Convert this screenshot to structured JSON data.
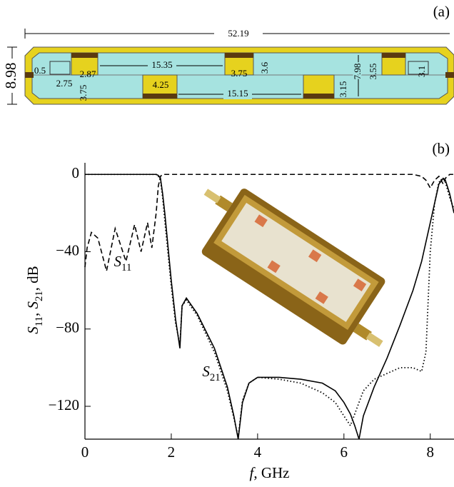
{
  "diagram": {
    "label": "(a)",
    "length": "52.19",
    "height": "8.98",
    "dimensions": [
      "0.5",
      "2.75",
      "2.87",
      "3.75",
      "15.35",
      "3.75",
      "3.6",
      "4.25",
      "15.15",
      "3.15",
      "7.98",
      "3.55",
      "3.1"
    ]
  },
  "chart_data": {
    "type": "line",
    "panel_label": "(b)",
    "x_label": "f, GHz",
    "y_label": "S11, S21, dB",
    "annotations": [
      "S11",
      "S21"
    ],
    "x": [
      0,
      0.05,
      0.15,
      0.3,
      0.5,
      0.7,
      0.95,
      1.15,
      1.3,
      1.45,
      1.55,
      1.65,
      1.7,
      1.75,
      1.8,
      1.85,
      2.0,
      2.1,
      2.2,
      2.25,
      2.35,
      2.6,
      3.0,
      3.3,
      3.45,
      3.55,
      3.65,
      3.8,
      4.0,
      4.5,
      5.0,
      5.5,
      5.8,
      6.0,
      6.15,
      6.25,
      6.35,
      6.45,
      6.7,
      7.0,
      7.3,
      7.6,
      7.8,
      7.9,
      8.0,
      8.1,
      8.2,
      8.3,
      8.35,
      8.45,
      8.55
    ],
    "series": [
      {
        "color": "#000000",
        "style": "solid",
        "values": [
          0,
          0,
          0,
          0,
          0,
          0,
          0,
          0,
          0,
          0,
          0,
          0,
          -0.5,
          -2,
          -10,
          -20,
          -55,
          -75,
          -90,
          -68,
          -64,
          -72,
          -90,
          -110,
          -125,
          -137,
          -118,
          -108,
          -105,
          -105,
          -106,
          -108,
          -112,
          -118,
          -124,
          -130,
          -137,
          -125,
          -110,
          -95,
          -78,
          -60,
          -45,
          -35,
          -25,
          -15,
          -5,
          -2,
          -3,
          -10,
          -20
        ]
      },
      {
        "color": "#000000",
        "style": "dotted",
        "values": [
          0,
          0,
          0,
          0,
          0,
          0,
          0,
          0,
          0,
          0,
          0,
          0,
          -1,
          -3,
          -12,
          -24,
          -58,
          -77,
          -88,
          -68,
          -65,
          -73,
          -92,
          -112,
          -126,
          -136,
          -117,
          -108,
          -105,
          -106,
          -108,
          -113,
          -118,
          -125,
          -130,
          -124,
          -118,
          -112,
          -106,
          -103,
          -100,
          -100,
          -102,
          -92,
          -40,
          -15,
          -4,
          -2,
          -4,
          -12,
          -18
        ]
      },
      {
        "color": "#000000",
        "style": "dashed",
        "values": [
          -48,
          -38,
          -30,
          -33,
          -50,
          -28,
          -45,
          -26,
          -40,
          -25,
          -38,
          -20,
          -6,
          -1,
          0,
          0,
          0,
          0,
          0,
          0,
          0,
          0,
          0,
          0,
          0,
          0,
          0,
          0,
          0,
          0,
          0,
          0,
          0,
          0,
          0,
          0,
          0,
          0,
          0,
          0,
          0,
          0,
          -1,
          -3,
          -7,
          -3,
          -1,
          -5,
          -2,
          0,
          0
        ]
      }
    ],
    "xlim": [
      0,
      8.55
    ],
    "ylim": [
      -137,
      6
    ],
    "xticks": [
      0,
      2,
      4,
      6,
      8
    ],
    "yticks": [
      0,
      {
        "value": -40,
        "label": "−40"
      },
      {
        "value": -80,
        "label": "−80"
      },
      {
        "value": -120,
        "label": "−120"
      }
    ]
  }
}
